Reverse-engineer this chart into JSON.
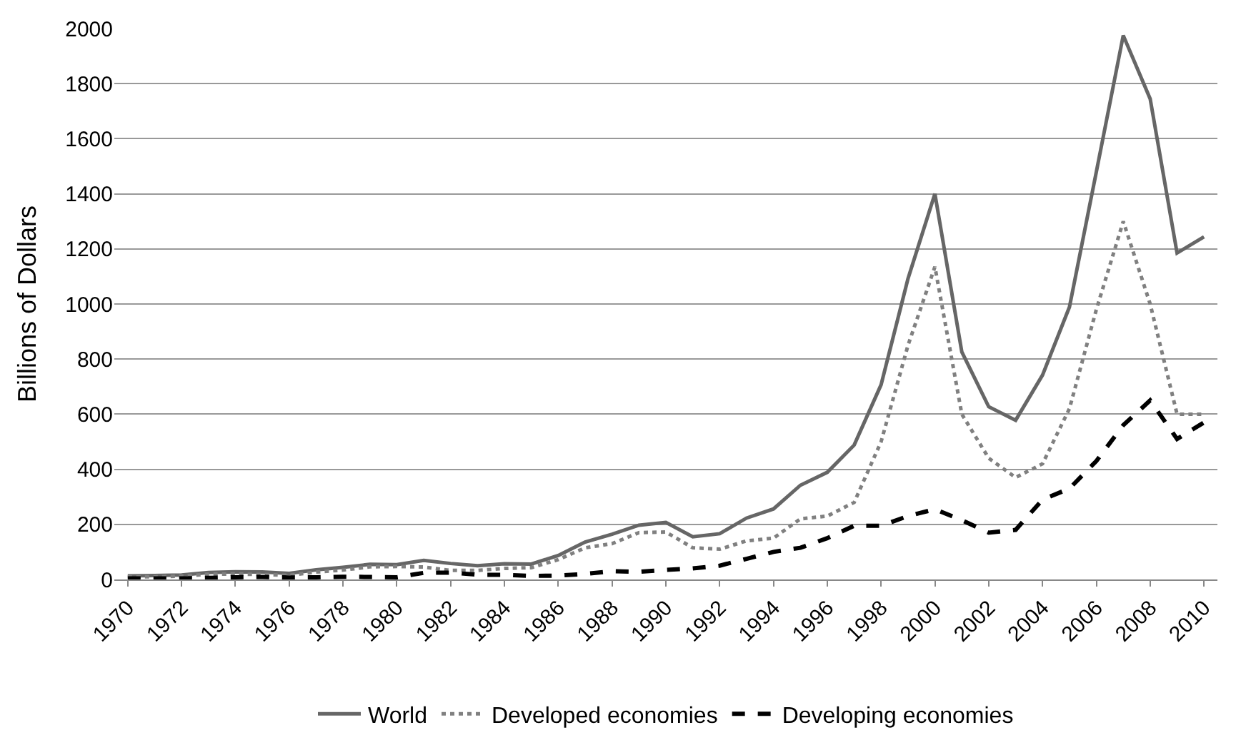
{
  "chart_data": {
    "type": "line",
    "ylabel": "Billions of Dollars",
    "categories": [
      "1970",
      null,
      "1972",
      null,
      "1974",
      null,
      "1976",
      null,
      "1978",
      null,
      "1980",
      null,
      "1982",
      null,
      "1984",
      null,
      "1986",
      null,
      "1988",
      null,
      "1990",
      null,
      "1992",
      null,
      "1994",
      null,
      "1996",
      null,
      "1998",
      null,
      "2000",
      null,
      "2002",
      null,
      "2004",
      null,
      "2006",
      null,
      "2008",
      null,
      "2010"
    ],
    "series": [
      {
        "name": "World",
        "color": "#666666",
        "line_style": "solid",
        "values": [
          13,
          14,
          16,
          25,
          28,
          27,
          22,
          35,
          44,
          55,
          54,
          69,
          58,
          50,
          57,
          56,
          87,
          136,
          164,
          197,
          207,
          155,
          166,
          223,
          256,
          342,
          389,
          488,
          707,
          1092,
          1400,
          826,
          627,
          578,
          742,
          989,
          1480,
          1975,
          1745,
          1185,
          1244
        ]
      },
      {
        "name": "Developed economies",
        "color": "#808080",
        "line_style": "dotted",
        "values": [
          9,
          10,
          12,
          19,
          20,
          18,
          15,
          27,
          34,
          46,
          47,
          45,
          33,
          33,
          40,
          43,
          72,
          115,
          130,
          170,
          172,
          115,
          110,
          140,
          150,
          220,
          230,
          280,
          500,
          850,
          1135,
          600,
          440,
          370,
          420,
          620,
          980,
          1300,
          1000,
          600,
          600
        ]
      },
      {
        "name": "Developing economies",
        "color": "#000000",
        "line_style": "dashed",
        "values": [
          4,
          4,
          4,
          6,
          8,
          9,
          7,
          8,
          10,
          9,
          8,
          24,
          25,
          17,
          17,
          13,
          14,
          20,
          30,
          28,
          35,
          40,
          50,
          75,
          100,
          115,
          150,
          195,
          195,
          230,
          255,
          215,
          170,
          180,
          290,
          330,
          430,
          560,
          650,
          510,
          570
        ]
      }
    ],
    "ylim": [
      0,
      2000
    ],
    "yticks": [
      0,
      200,
      400,
      600,
      800,
      1000,
      1200,
      1400,
      1600,
      1800,
      2000
    ],
    "grid": "y",
    "legend": "bottom",
    "marker": "none"
  }
}
